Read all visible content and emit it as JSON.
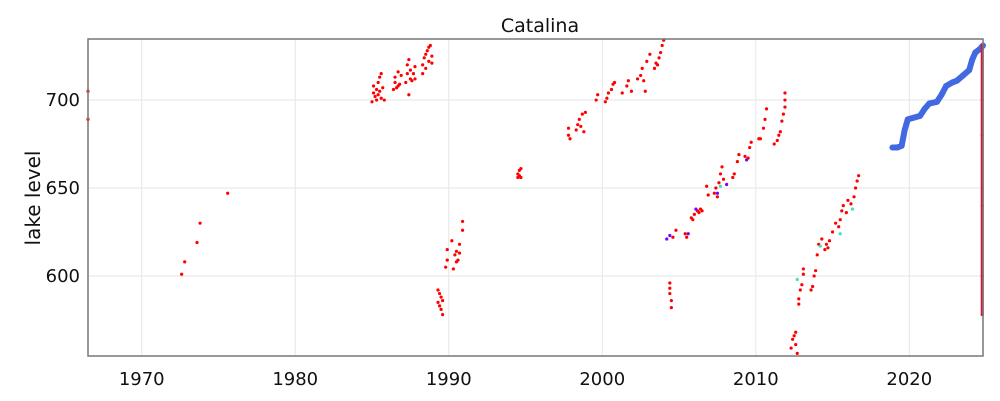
{
  "chart_data": {
    "type": "scatter",
    "title": "Catalina",
    "xlabel": "",
    "ylabel": "lake level",
    "xlim": [
      1966.5,
      2024.8
    ],
    "ylim": [
      554.5,
      734.7
    ],
    "grid": true,
    "x_ticks": [
      "1970",
      "1980",
      "1990",
      "2000",
      "2010",
      "2020"
    ],
    "y_ticks": [
      "600",
      "650",
      "700"
    ],
    "series": [
      {
        "color": "#ff0000",
        "points": [
          [
            1966.5,
            705
          ],
          [
            1966.5,
            689
          ],
          [
            1972.6,
            601
          ],
          [
            1972.8,
            608
          ],
          [
            1973.6,
            619
          ],
          [
            1973.8,
            630
          ],
          [
            1975.6,
            647
          ],
          [
            1985.0,
            699
          ],
          [
            1985.1,
            704
          ],
          [
            1985.1,
            708
          ],
          [
            1985.2,
            702
          ],
          [
            1985.3,
            700
          ],
          [
            1985.3,
            706
          ],
          [
            1985.4,
            703
          ],
          [
            1985.4,
            710
          ],
          [
            1985.5,
            705
          ],
          [
            1985.5,
            713
          ],
          [
            1985.6,
            715
          ],
          [
            1985.6,
            701
          ],
          [
            1985.7,
            707
          ],
          [
            1985.8,
            700
          ],
          [
            1986.4,
            706
          ],
          [
            1986.5,
            710
          ],
          [
            1986.5,
            713
          ],
          [
            1986.6,
            707
          ],
          [
            1986.7,
            716
          ],
          [
            1986.7,
            708
          ],
          [
            1986.8,
            709
          ],
          [
            1986.9,
            714
          ],
          [
            1987.2,
            710
          ],
          [
            1987.3,
            715
          ],
          [
            1987.3,
            720
          ],
          [
            1987.4,
            723
          ],
          [
            1987.4,
            703
          ],
          [
            1987.5,
            712
          ],
          [
            1987.5,
            717
          ],
          [
            1987.6,
            711
          ],
          [
            1987.7,
            715
          ],
          [
            1987.8,
            719
          ],
          [
            1987.8,
            712
          ],
          [
            1988.3,
            715
          ],
          [
            1988.3,
            720
          ],
          [
            1988.4,
            724
          ],
          [
            1988.5,
            726
          ],
          [
            1988.5,
            718
          ],
          [
            1988.6,
            728
          ],
          [
            1988.7,
            730
          ],
          [
            1988.7,
            722
          ],
          [
            1988.8,
            731
          ],
          [
            1988.9,
            725
          ],
          [
            1988.9,
            721
          ],
          [
            1989.3,
            585
          ],
          [
            1989.3,
            592
          ],
          [
            1989.4,
            583
          ],
          [
            1989.4,
            590
          ],
          [
            1989.5,
            588
          ],
          [
            1989.5,
            581
          ],
          [
            1989.6,
            578
          ],
          [
            1989.6,
            586
          ],
          [
            1989.8,
            605
          ],
          [
            1989.9,
            615
          ],
          [
            1989.9,
            609
          ],
          [
            1990.2,
            620
          ],
          [
            1990.3,
            604
          ],
          [
            1990.4,
            612
          ],
          [
            1990.5,
            614
          ],
          [
            1990.5,
            608
          ],
          [
            1990.6,
            609
          ],
          [
            1990.7,
            613
          ],
          [
            1990.7,
            618
          ],
          [
            1990.9,
            626
          ],
          [
            1990.9,
            631
          ],
          [
            1994.5,
            656
          ],
          [
            1994.5,
            658
          ],
          [
            1994.6,
            657
          ],
          [
            1994.6,
            660
          ],
          [
            1994.7,
            661
          ],
          [
            1994.7,
            656
          ],
          [
            1997.8,
            680
          ],
          [
            1997.8,
            684
          ],
          [
            1997.9,
            678
          ],
          [
            1998.3,
            683
          ],
          [
            1998.4,
            686
          ],
          [
            1998.5,
            689
          ],
          [
            1998.6,
            685
          ],
          [
            1998.7,
            692
          ],
          [
            1998.8,
            682
          ],
          [
            1998.9,
            693
          ],
          [
            1999.6,
            700
          ],
          [
            1999.7,
            703
          ],
          [
            2000.2,
            699
          ],
          [
            2000.3,
            701
          ],
          [
            2000.4,
            704
          ],
          [
            2000.6,
            706
          ],
          [
            2000.7,
            709
          ],
          [
            2000.8,
            710
          ],
          [
            2001.3,
            704
          ],
          [
            2001.6,
            708
          ],
          [
            2001.7,
            711
          ],
          [
            2001.9,
            705
          ],
          [
            2002.3,
            712
          ],
          [
            2002.5,
            714
          ],
          [
            2002.6,
            718
          ],
          [
            2002.7,
            711
          ],
          [
            2002.8,
            705
          ],
          [
            2002.9,
            722
          ],
          [
            2003.1,
            726
          ],
          [
            2003.4,
            718
          ],
          [
            2003.5,
            721
          ],
          [
            2003.6,
            720
          ],
          [
            2003.7,
            724
          ],
          [
            2003.8,
            727
          ],
          [
            2003.9,
            731
          ],
          [
            2004.0,
            734
          ],
          [
            2004.4,
            596
          ],
          [
            2004.4,
            593
          ],
          [
            2004.4,
            590
          ],
          [
            2004.5,
            586
          ],
          [
            2004.5,
            582
          ],
          [
            2004.6,
            622
          ],
          [
            2004.8,
            626
          ],
          [
            2005.4,
            624
          ],
          [
            2005.5,
            622
          ],
          [
            2005.8,
            633
          ],
          [
            2005.9,
            632
          ],
          [
            2006.0,
            635
          ],
          [
            2006.2,
            637
          ],
          [
            2006.3,
            636
          ],
          [
            2006.4,
            638
          ],
          [
            2006.5,
            637
          ],
          [
            2006.8,
            651
          ],
          [
            2006.9,
            646
          ],
          [
            2007.3,
            647
          ],
          [
            2007.4,
            650
          ],
          [
            2007.5,
            645
          ],
          [
            2007.6,
            653
          ],
          [
            2007.7,
            658
          ],
          [
            2007.8,
            662
          ],
          [
            2007.9,
            655
          ],
          [
            2008.5,
            656
          ],
          [
            2008.6,
            658
          ],
          [
            2008.8,
            665
          ],
          [
            2008.9,
            669
          ],
          [
            2009.3,
            668
          ],
          [
            2009.5,
            667
          ],
          [
            2009.6,
            673
          ],
          [
            2009.7,
            676
          ],
          [
            2010.2,
            678
          ],
          [
            2010.3,
            678
          ],
          [
            2010.5,
            684
          ],
          [
            2010.6,
            689
          ],
          [
            2010.7,
            695
          ],
          [
            2011.2,
            675
          ],
          [
            2011.4,
            677
          ],
          [
            2011.5,
            680
          ],
          [
            2011.6,
            682
          ],
          [
            2011.7,
            688
          ],
          [
            2011.8,
            692
          ],
          [
            2011.9,
            696
          ],
          [
            2011.9,
            700
          ],
          [
            2011.9,
            704
          ],
          [
            2012.3,
            559
          ],
          [
            2012.4,
            564
          ],
          [
            2012.5,
            566
          ],
          [
            2012.6,
            561
          ],
          [
            2012.6,
            568
          ],
          [
            2012.7,
            556
          ],
          [
            2012.8,
            584
          ],
          [
            2012.8,
            587
          ],
          [
            2012.9,
            592
          ],
          [
            2013.0,
            595
          ],
          [
            2013.1,
            601
          ],
          [
            2013.1,
            604
          ],
          [
            2013.6,
            592
          ],
          [
            2013.7,
            594
          ],
          [
            2013.8,
            600
          ],
          [
            2013.9,
            603
          ],
          [
            2014.0,
            612
          ],
          [
            2014.1,
            618
          ],
          [
            2014.3,
            621
          ],
          [
            2014.5,
            615
          ],
          [
            2014.6,
            618
          ],
          [
            2014.7,
            616
          ],
          [
            2014.8,
            620
          ],
          [
            2015.0,
            625
          ],
          [
            2015.2,
            630
          ],
          [
            2015.4,
            628
          ],
          [
            2015.5,
            632
          ],
          [
            2015.6,
            637
          ],
          [
            2015.7,
            640
          ],
          [
            2015.9,
            636
          ],
          [
            2016.0,
            643
          ],
          [
            2016.2,
            641
          ],
          [
            2016.4,
            645
          ],
          [
            2016.5,
            650
          ],
          [
            2016.6,
            654
          ],
          [
            2016.7,
            657
          ]
        ]
      },
      {
        "color": "#7b00ff",
        "points": [
          [
            2004.2,
            621
          ],
          [
            2004.4,
            623
          ],
          [
            2005.6,
            624
          ],
          [
            2006.1,
            638
          ],
          [
            2007.5,
            647
          ],
          [
            2008.1,
            652
          ],
          [
            2009.4,
            666
          ]
        ]
      },
      {
        "color": "#40e0c0",
        "points": [
          [
            2012.7,
            598
          ],
          [
            2014.2,
            617
          ],
          [
            2015.5,
            624
          ],
          [
            2016.3,
            638
          ],
          [
            2007.7,
            651
          ]
        ]
      },
      {
        "color": "#4169e1",
        "points": [
          [
            2018.9,
            673
          ],
          [
            2019.2,
            673
          ],
          [
            2019.5,
            674
          ],
          [
            2019.7,
            683
          ],
          [
            2019.9,
            689
          ],
          [
            2020.3,
            690
          ],
          [
            2020.7,
            691
          ],
          [
            2021.0,
            695
          ],
          [
            2021.3,
            698
          ],
          [
            2021.8,
            699
          ],
          [
            2022.1,
            703
          ],
          [
            2022.4,
            708
          ],
          [
            2022.8,
            710
          ],
          [
            2023.1,
            711
          ],
          [
            2023.5,
            714
          ],
          [
            2023.9,
            717
          ],
          [
            2024.1,
            723
          ],
          [
            2024.3,
            727
          ],
          [
            2024.6,
            729
          ],
          [
            2024.8,
            731
          ]
        ]
      },
      {
        "color": "#dc143c",
        "points": [
          [
            2024.75,
            578
          ],
          [
            2024.75,
            600
          ],
          [
            2024.75,
            640
          ],
          [
            2024.75,
            680
          ],
          [
            2024.75,
            700
          ],
          [
            2024.75,
            731
          ]
        ]
      }
    ]
  }
}
